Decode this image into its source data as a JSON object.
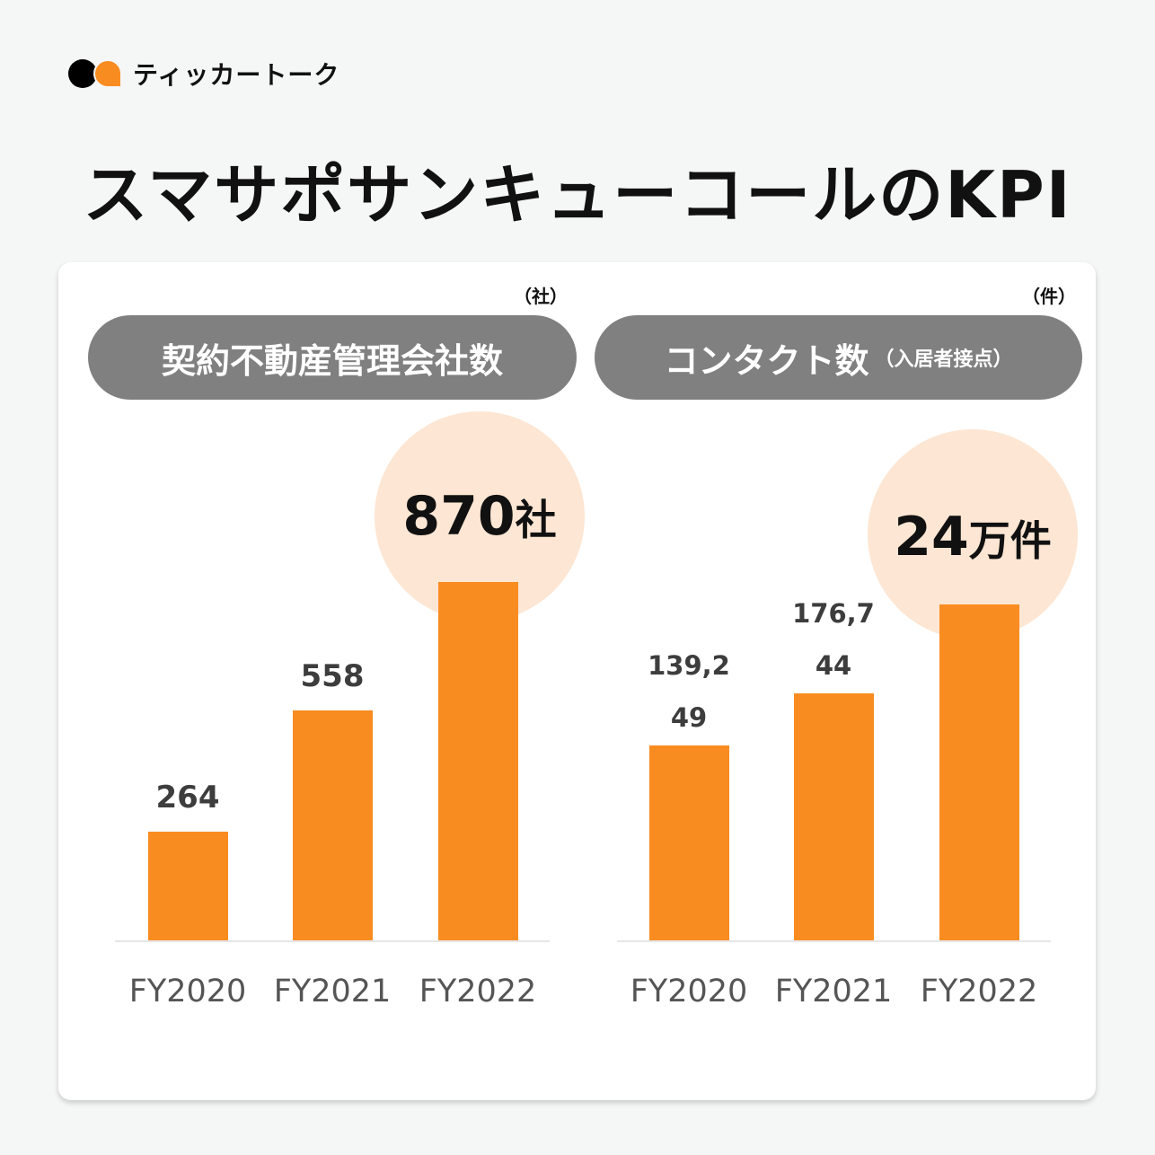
{
  "brand": {
    "name": "ティッカートーク"
  },
  "title": "スマサポサンキューコールのKPI",
  "chart_data": [
    {
      "type": "bar",
      "title": "契約不動産管理会社数",
      "title_sub": "",
      "unit": "（社）",
      "categories": [
        "FY2020",
        "FY2021",
        "FY2022"
      ],
      "values": [
        264,
        558,
        870
      ],
      "value_labels": [
        "264",
        "558",
        ""
      ],
      "callout": {
        "number": "870",
        "unit": "社"
      },
      "ylim": [
        0,
        870
      ],
      "grid": false
    },
    {
      "type": "bar",
      "title": "コンタクト数",
      "title_sub": "（入居者接点）",
      "unit": "（件）",
      "categories": [
        "FY2020",
        "FY2021",
        "FY2022"
      ],
      "values": [
        139249,
        176744,
        240000
      ],
      "value_labels": [
        "139,249",
        "176,744",
        ""
      ],
      "callout": {
        "number": "24",
        "unit": "万件"
      },
      "ylim": [
        0,
        240000
      ],
      "grid": false
    }
  ],
  "colors": {
    "bar": "#f98c21",
    "callout_bg": "#fde6d3",
    "pill": "#808080"
  }
}
